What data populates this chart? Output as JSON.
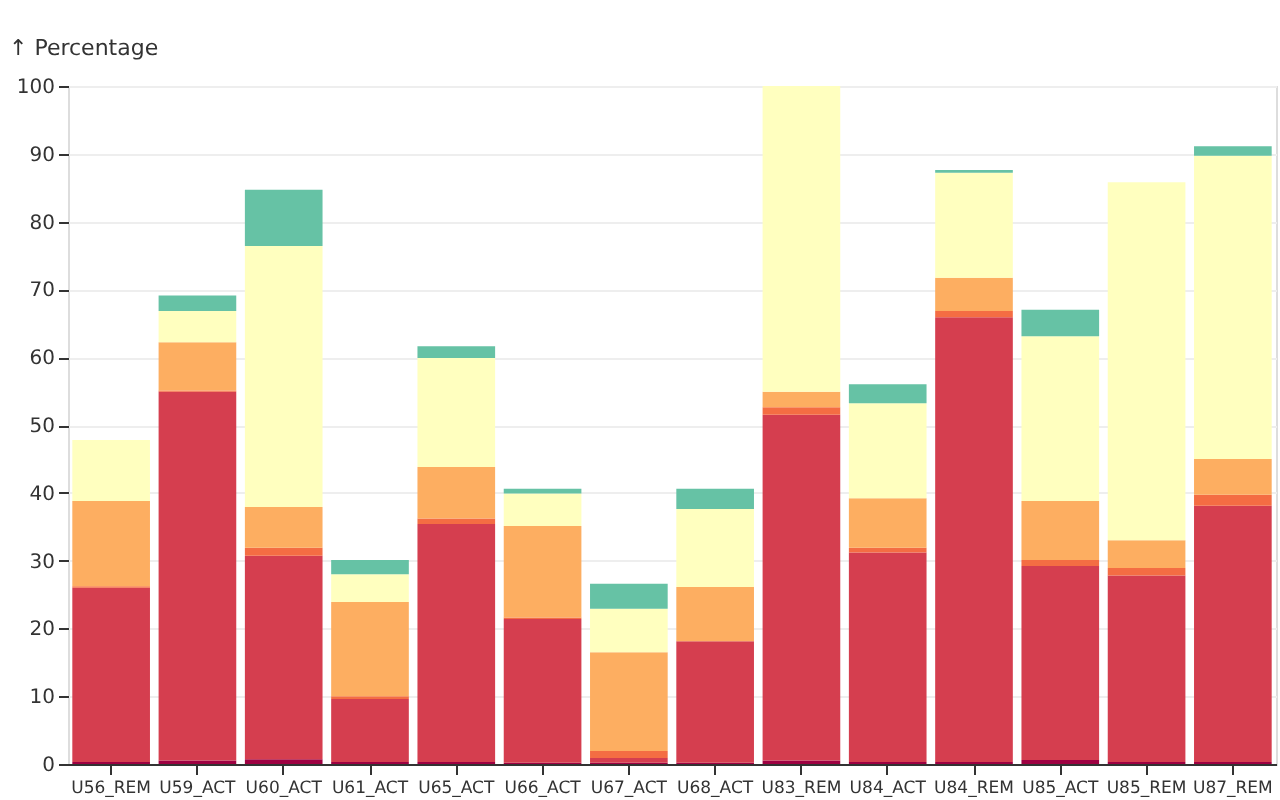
{
  "chart_data": {
    "type": "bar",
    "stacked": true,
    "ylabel": "↑ Percentage",
    "categories": [
      "U56_REM",
      "U59_ACT",
      "U60_ACT",
      "U61_ACT",
      "U65_ACT",
      "U66_ACT",
      "U67_ACT",
      "U68_ACT",
      "U83_REM",
      "U84_ACT",
      "U84_REM",
      "U85_ACT",
      "U85_REM",
      "U87_REM"
    ],
    "series": [
      {
        "color": "#9e0142",
        "values": [
          0.3,
          0.5,
          0.7,
          0.3,
          0.3,
          0.2,
          0.2,
          0.2,
          0.5,
          0.3,
          0.3,
          0.6,
          0.3,
          0.3
        ]
      },
      {
        "color": "#d53e4f",
        "values": [
          25.7,
          54.4,
          30.0,
          9.3,
          35.1,
          21.2,
          0.7,
          17.9,
          51.0,
          30.9,
          65.6,
          28.6,
          27.5,
          37.8
        ]
      },
      {
        "color": "#f46d43",
        "values": [
          0.2,
          0.2,
          1.2,
          0.4,
          0.8,
          0.2,
          1.0,
          null,
          1.1,
          0.7,
          0.9,
          0.9,
          1.1,
          1.6
        ]
      },
      {
        "color": "#fdae61",
        "values": [
          12.6,
          7.1,
          6.0,
          13.9,
          7.6,
          13.5,
          14.6,
          8.0,
          2.3,
          7.3,
          4.9,
          8.7,
          4.1,
          5.3
        ]
      },
      {
        "color": "#ffffbf",
        "values": [
          9.0,
          4.6,
          38.5,
          4.1,
          16.1,
          4.8,
          6.4,
          11.5,
          45.1,
          14.0,
          15.5,
          24.3,
          52.8,
          44.7
        ]
      },
      {
        "color": "#66c2a5",
        "values": [
          0,
          2.3,
          8.3,
          2.1,
          1.7,
          0.7,
          3.7,
          3.0,
          0,
          2.8,
          0.4,
          3.9,
          0,
          1.4
        ]
      }
    ],
    "ylim": [
      0,
      100
    ],
    "yticks": [
      0,
      10,
      20,
      30,
      40,
      50,
      60,
      70,
      80,
      90,
      100
    ],
    "grid": "y",
    "legend": false
  }
}
